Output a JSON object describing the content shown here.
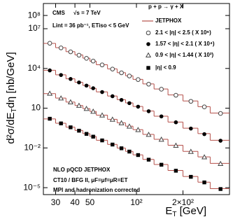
{
  "chart_data": {
    "type": "scatter",
    "xscale": "log",
    "yscale": "log",
    "xlabel": [
      "E",
      "T",
      " [GeV]"
    ],
    "ylabel": [
      "d²σ/dE",
      "T",
      "dη [nb/GeV]"
    ],
    "annotations": [
      "CMS",
      "√s = 7 TeV",
      "Lint = 36 pb⁻¹, ETiso < 5 GeV",
      "NLO pQCD JETPHOX",
      "CT10 / BFG II, μF=μf=μR=ET",
      "MPI and hadronization corrected"
    ],
    "legend_title": "p + p → γ + X",
    "xlim": [
      25,
      400
    ],
    "ylim": [
      3e-06,
      800000000.0
    ],
    "xticks": [
      30,
      40,
      50,
      {
        "value": 100,
        "label": "10²"
      },
      {
        "value": 200,
        "label": "2×10²"
      }
    ],
    "yticks": [
      {
        "value": 1e-05,
        "label": "10⁻⁵"
      },
      {
        "value": 0.01,
        "label": "10⁻²"
      },
      10,
      {
        "value": 10000,
        "label": "10⁴"
      },
      {
        "value": 10000000,
        "label": "10⁷"
      },
      {
        "value": 100000000,
        "label": "10⁸"
      }
    ],
    "bins": [
      25,
      30,
      35,
      40,
      45,
      50,
      55,
      65,
      75,
      85,
      95,
      110,
      130,
      160,
      200,
      250,
      300,
      400
    ],
    "x": [
      27.5,
      32.5,
      37.5,
      42.5,
      47.5,
      52.5,
      60,
      70,
      80,
      90,
      102.5,
      120,
      145,
      180,
      225,
      275,
      350
    ],
    "series": [
      {
        "name": "2.1 < |η| < 2.5 ( X 10⁶)",
        "color": "#444444",
        "marker": "circle-open",
        "values": [
          800000,
          356000,
          180000,
          100000,
          58000,
          36000,
          18500,
          9000,
          4700,
          2700,
          1450,
          650,
          270,
          95,
          33,
          12.5,
          4.0
        ]
      },
      {
        "name": "1.57 < |η| < 2.1 ( X 10⁴)",
        "color": "#000000",
        "marker": "circle-filled",
        "values": [
          7100,
          3200,
          1600,
          880,
          510,
          320,
          165,
          80,
          42,
          24,
          13,
          5.9,
          2.4,
          0.86,
          0.29,
          0.11,
          0.035
        ]
      },
      {
        "name": "0.9 < |η| < 1.44 ( X 10²)",
        "color": "#444444",
        "marker": "triangle-open",
        "values": [
          127,
          56,
          28.5,
          15.6,
          9.1,
          5.6,
          2.9,
          1.4,
          0.75,
          0.42,
          0.23,
          0.1,
          0.043,
          0.015,
          0.0052,
          0.002,
          0.00063
        ]
      },
      {
        "name": "|η| < 0.9",
        "color": "#000000",
        "marker": "square-filled",
        "values": [
          1.6,
          0.71,
          0.36,
          0.2,
          0.115,
          0.071,
          0.037,
          0.018,
          0.0094,
          0.0053,
          0.0029,
          0.0013,
          0.00054,
          0.00019,
          6.6e-05,
          2.5e-05,
          7.9e-06
        ]
      }
    ],
    "theory": {
      "name": "JETPHOX",
      "color": "#b5504a",
      "curves": [
        [
          780000,
          370000,
          185000,
          105000,
          60000,
          35000,
          19000,
          9300,
          4800,
          2800,
          1500,
          680,
          280,
          100,
          35,
          13,
          4.3
        ],
        [
          7300,
          3300,
          1650,
          900,
          520,
          310,
          170,
          83,
          44,
          25,
          13.5,
          6.1,
          2.5,
          0.9,
          0.31,
          0.12,
          0.038
        ],
        [
          125,
          58,
          29,
          16,
          9.4,
          5.7,
          3.0,
          1.45,
          0.78,
          0.44,
          0.24,
          0.105,
          0.045,
          0.016,
          0.0055,
          0.0021,
          0.00068
        ],
        [
          1.55,
          0.73,
          0.37,
          0.21,
          0.12,
          0.073,
          0.038,
          0.0185,
          0.0097,
          0.0055,
          0.003,
          0.00135,
          0.00056,
          0.0002,
          7e-05,
          2.6e-05,
          8.4e-06
        ]
      ]
    }
  }
}
